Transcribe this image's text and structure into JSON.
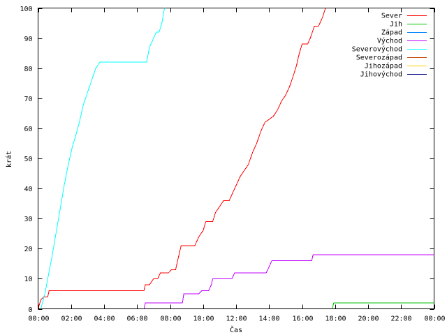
{
  "chart_data": {
    "type": "line",
    "xlabel": "Čas",
    "ylabel": "krát",
    "xlim": [
      "00:00",
      "24:00"
    ],
    "ylim": [
      0,
      100
    ],
    "grid": false,
    "legend_position": "top-right",
    "x_ticks": [
      "00:00",
      "02:00",
      "04:00",
      "06:00",
      "08:00",
      "10:00",
      "12:00",
      "14:00",
      "16:00",
      "18:00",
      "20:00",
      "22:00",
      "00:00"
    ],
    "y_ticks": [
      0,
      10,
      20,
      30,
      40,
      50,
      60,
      70,
      80,
      90,
      100
    ],
    "series": [
      {
        "name": "Sever",
        "color": "#ff0000",
        "points": [
          [
            "00:00",
            0
          ],
          [
            "00:10",
            3
          ],
          [
            "00:20",
            4
          ],
          [
            "00:35",
            4
          ],
          [
            "00:40",
            6
          ],
          [
            "06:25",
            6
          ],
          [
            "06:30",
            8
          ],
          [
            "06:45",
            8
          ],
          [
            "07:00",
            10
          ],
          [
            "07:15",
            10
          ],
          [
            "07:25",
            12
          ],
          [
            "07:55",
            12
          ],
          [
            "08:05",
            13
          ],
          [
            "08:20",
            13
          ],
          [
            "08:30",
            17
          ],
          [
            "08:40",
            21
          ],
          [
            "09:30",
            21
          ],
          [
            "09:45",
            24
          ],
          [
            "10:00",
            26
          ],
          [
            "10:10",
            29
          ],
          [
            "10:35",
            29
          ],
          [
            "10:45",
            32
          ],
          [
            "11:00",
            34
          ],
          [
            "11:15",
            36
          ],
          [
            "11:35",
            36
          ],
          [
            "11:45",
            38
          ],
          [
            "12:00",
            41
          ],
          [
            "12:15",
            44
          ],
          [
            "12:30",
            46
          ],
          [
            "12:45",
            48
          ],
          [
            "13:00",
            52
          ],
          [
            "13:15",
            55
          ],
          [
            "13:30",
            59
          ],
          [
            "13:45",
            62
          ],
          [
            "14:00",
            63
          ],
          [
            "14:15",
            64
          ],
          [
            "14:30",
            66
          ],
          [
            "14:45",
            69
          ],
          [
            "15:00",
            71
          ],
          [
            "15:15",
            74
          ],
          [
            "15:30",
            78
          ],
          [
            "15:40",
            81
          ],
          [
            "15:50",
            85
          ],
          [
            "16:00",
            88
          ],
          [
            "16:20",
            88
          ],
          [
            "16:30",
            90
          ],
          [
            "16:45",
            94
          ],
          [
            "17:00",
            94
          ],
          [
            "17:15",
            97
          ],
          [
            "17:25",
            100
          ]
        ]
      },
      {
        "name": "Jih",
        "color": "#00c000",
        "points": [
          [
            "17:50",
            0
          ],
          [
            "17:55",
            2
          ],
          [
            "24:00",
            2
          ]
        ]
      },
      {
        "name": "Západ",
        "color": "#0080ff",
        "points": []
      },
      {
        "name": "Východ",
        "color": "#c000ff",
        "points": [
          [
            "06:25",
            0
          ],
          [
            "06:30",
            2
          ],
          [
            "08:45",
            2
          ],
          [
            "08:50",
            5
          ],
          [
            "09:45",
            5
          ],
          [
            "09:55",
            6
          ],
          [
            "10:20",
            6
          ],
          [
            "10:30",
            8
          ],
          [
            "10:35",
            10
          ],
          [
            "11:45",
            10
          ],
          [
            "11:55",
            12
          ],
          [
            "13:50",
            12
          ],
          [
            "14:00",
            14
          ],
          [
            "14:10",
            16
          ],
          [
            "16:35",
            16
          ],
          [
            "16:40",
            18
          ],
          [
            "24:00",
            18
          ]
        ]
      },
      {
        "name": "Severovýchod",
        "color": "#00ffff",
        "points": [
          [
            "00:10",
            0
          ],
          [
            "00:25",
            5
          ],
          [
            "00:35",
            10
          ],
          [
            "00:50",
            17
          ],
          [
            "01:05",
            25
          ],
          [
            "01:20",
            33
          ],
          [
            "01:35",
            41
          ],
          [
            "01:50",
            48
          ],
          [
            "02:05",
            54
          ],
          [
            "02:15",
            57
          ],
          [
            "02:30",
            62
          ],
          [
            "02:45",
            68
          ],
          [
            "03:00",
            72
          ],
          [
            "03:15",
            76
          ],
          [
            "03:30",
            80
          ],
          [
            "03:45",
            82
          ],
          [
            "06:35",
            82
          ],
          [
            "06:45",
            87
          ],
          [
            "07:00",
            90
          ],
          [
            "07:10",
            92
          ],
          [
            "07:20",
            92
          ],
          [
            "07:30",
            95
          ],
          [
            "07:40",
            100
          ]
        ]
      },
      {
        "name": "Severozápad",
        "color": "#c04000",
        "points": []
      },
      {
        "name": "Jihozápad",
        "color": "#ffcc00",
        "points": []
      },
      {
        "name": "Jihovýchod",
        "color": "#000080",
        "points": []
      }
    ]
  }
}
